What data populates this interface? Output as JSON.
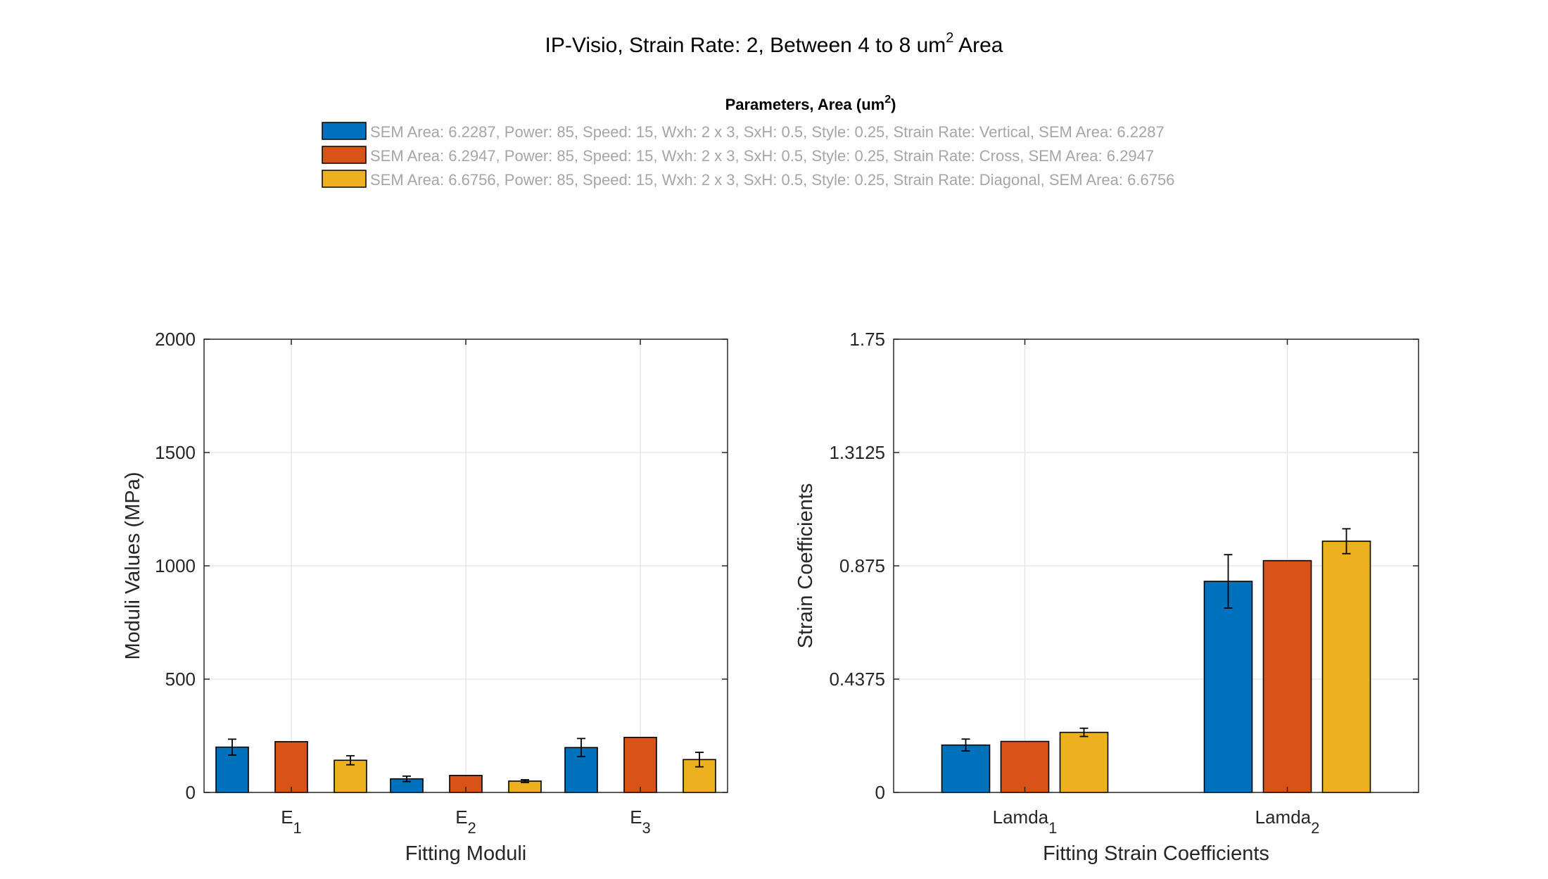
{
  "figure": {
    "title_main": "IP-Visio, Strain Rate: 2, Between 4 to 8 um",
    "title_sup": "2",
    "title_end": " Area"
  },
  "legend": {
    "title_main": "Parameters, Area (um",
    "title_sup": "2",
    "title_end": ")",
    "entries": [
      {
        "label": "SEM Area: 6.2287, Power: 85, Speed: 15, Wxh: 2 x 3, SxH: 0.5, Style: 0.25, Strain Rate: Vertical, SEM Area: 6.2287",
        "color": "#0072BD"
      },
      {
        "label": "SEM Area: 6.2947, Power: 85, Speed: 15, Wxh: 2 x 3, SxH: 0.5, Style: 0.25, Strain Rate: Cross, SEM Area: 6.2947",
        "color": "#D95319"
      },
      {
        "label": "SEM Area: 6.6756, Power: 85, Speed: 15, Wxh: 2 x 3, SxH: 0.5, Style: 0.25, Strain Rate: Diagonal, SEM Area: 6.6756",
        "color": "#EDB120"
      }
    ]
  },
  "chart_data": [
    {
      "type": "bar",
      "categories": [
        {
          "main": "E",
          "sub": "1"
        },
        {
          "main": "E",
          "sub": "2"
        },
        {
          "main": "E",
          "sub": "3"
        }
      ],
      "series": [
        {
          "values": [
            200,
            60,
            198
          ],
          "errors": [
            35,
            12,
            40
          ]
        },
        {
          "values": [
            224,
            75,
            243
          ],
          "errors": [
            0,
            0,
            0
          ]
        },
        {
          "values": [
            142,
            50,
            145
          ],
          "errors": [
            20,
            6,
            32
          ]
        }
      ],
      "xlabel": "Fitting Moduli",
      "ylabel": "Moduli Values (MPa)",
      "ylim": [
        0,
        2000
      ],
      "yticks": [
        "0",
        "500",
        "1000",
        "1500",
        "2000"
      ],
      "ytick_values": [
        0,
        500,
        1000,
        1500,
        2000
      ],
      "grid": true
    },
    {
      "type": "bar",
      "categories": [
        {
          "main": "Lamda",
          "sub": "1"
        },
        {
          "main": "Lamda",
          "sub": "2"
        }
      ],
      "series": [
        {
          "values": [
            0.183,
            0.815
          ],
          "errors": [
            0.023,
            0.103
          ]
        },
        {
          "values": [
            0.197,
            0.895
          ],
          "errors": [
            0,
            0
          ]
        },
        {
          "values": [
            0.232,
            0.97
          ],
          "errors": [
            0.016,
            0.048
          ]
        }
      ],
      "xlabel": "Fitting Strain Coefficients",
      "ylabel": "Strain Coefficients",
      "ylim": [
        0,
        1.75
      ],
      "yticks": [
        "0",
        "0.4375",
        "0.875",
        "1.3125",
        "1.75"
      ],
      "ytick_values": [
        0,
        0.4375,
        0.875,
        1.3125,
        1.75
      ],
      "grid": true
    }
  ]
}
